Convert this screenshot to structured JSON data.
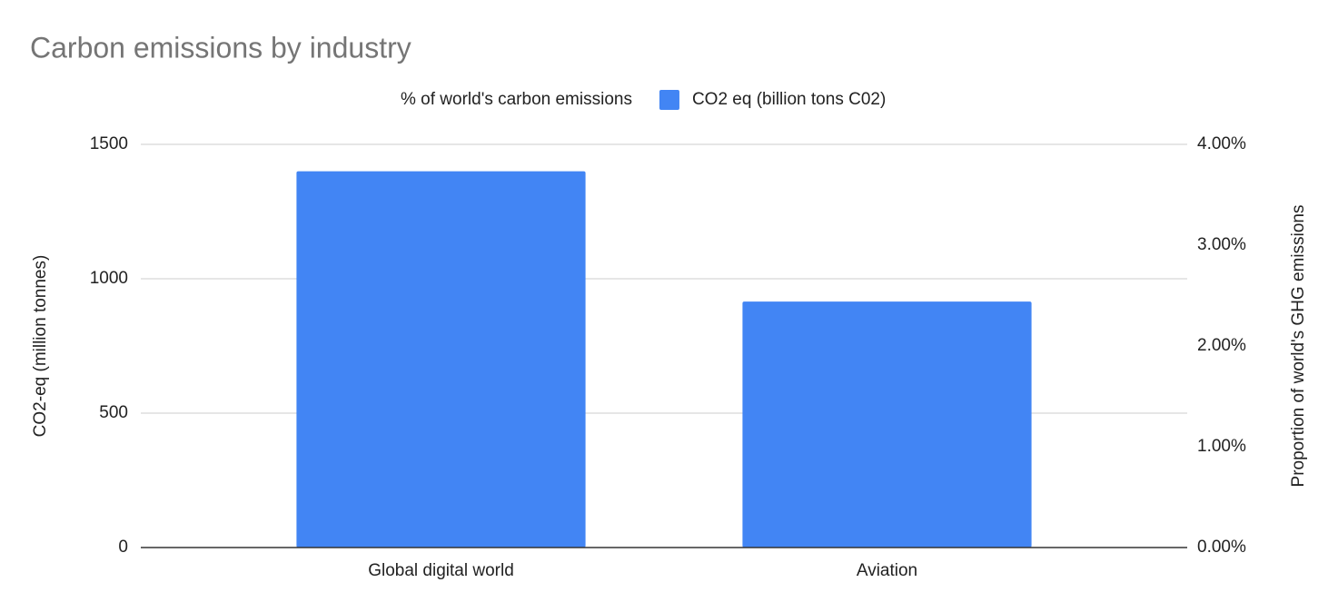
{
  "chart_data": {
    "type": "bar",
    "title": "Carbon emissions by industry",
    "categories": [
      "Global digital world",
      "Aviation"
    ],
    "series": [
      {
        "name": "% of world's carbon emissions",
        "axis": "y2",
        "values": [
          null,
          null
        ]
      },
      {
        "name": "CO2 eq (billion tons C02)",
        "color": "#4285f4",
        "values": [
          1400,
          915
        ]
      }
    ],
    "ylabel": "CO2-eq (million tonnes)",
    "y2label": "Proportion of world's GHG emissions",
    "ylim": [
      0,
      1500
    ],
    "yticks": [
      0,
      500,
      1000,
      1500
    ],
    "y2lim": [
      0,
      4
    ],
    "y2ticks": [
      {
        "value": 0,
        "label": "0.00%"
      },
      {
        "value": 1,
        "label": "1.00%"
      },
      {
        "value": 2,
        "label": "2.00%"
      },
      {
        "value": 3,
        "label": "3.00%"
      },
      {
        "value": 4,
        "label": "4.00%"
      }
    ],
    "grid": true,
    "legend": "top"
  }
}
